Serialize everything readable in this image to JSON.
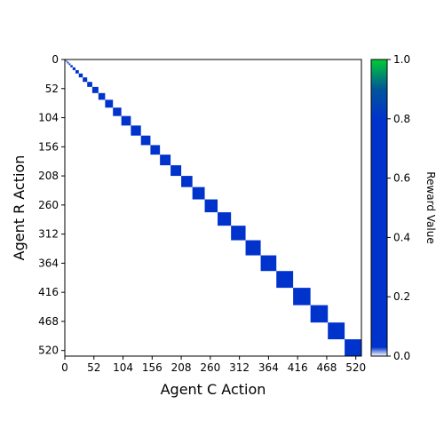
{
  "chart_data": {
    "type": "heatmap",
    "xlabel": "Agent C Action",
    "ylabel": "Agent R Action",
    "xlim": [
      0,
      530
    ],
    "ylim": [
      530,
      0
    ],
    "xticks": [
      0,
      52,
      104,
      156,
      208,
      260,
      312,
      364,
      416,
      468,
      520
    ],
    "yticks": [
      0,
      52,
      104,
      156,
      208,
      260,
      312,
      364,
      416,
      468,
      520
    ],
    "background_value": 0.0,
    "block_value": 0.2,
    "diagonal_blocks": [
      {
        "start": 0,
        "end": 2
      },
      {
        "start": 2,
        "end": 4
      },
      {
        "start": 4,
        "end": 7
      },
      {
        "start": 7,
        "end": 10
      },
      {
        "start": 10,
        "end": 14
      },
      {
        "start": 14,
        "end": 19
      },
      {
        "start": 19,
        "end": 25
      },
      {
        "start": 25,
        "end": 32
      },
      {
        "start": 32,
        "end": 40
      },
      {
        "start": 40,
        "end": 49
      },
      {
        "start": 49,
        "end": 60
      },
      {
        "start": 60,
        "end": 72
      },
      {
        "start": 72,
        "end": 86
      },
      {
        "start": 86,
        "end": 101
      },
      {
        "start": 101,
        "end": 118
      },
      {
        "start": 118,
        "end": 136
      },
      {
        "start": 136,
        "end": 153
      },
      {
        "start": 153,
        "end": 170
      },
      {
        "start": 170,
        "end": 189
      },
      {
        "start": 189,
        "end": 208
      },
      {
        "start": 208,
        "end": 228
      },
      {
        "start": 228,
        "end": 250
      },
      {
        "start": 250,
        "end": 273
      },
      {
        "start": 273,
        "end": 297
      },
      {
        "start": 297,
        "end": 323
      },
      {
        "start": 323,
        "end": 350
      },
      {
        "start": 350,
        "end": 378
      },
      {
        "start": 378,
        "end": 408
      },
      {
        "start": 408,
        "end": 439
      },
      {
        "start": 439,
        "end": 470
      },
      {
        "start": 470,
        "end": 500
      },
      {
        "start": 500,
        "end": 530
      }
    ],
    "colorbar": {
      "label": "Reward Value",
      "range": [
        0.0,
        1.0
      ],
      "ticks": [
        "0.0",
        "0.2",
        "0.4",
        "0.6",
        "0.8",
        "1.0"
      ],
      "colors": [
        "#ffffff",
        "#0033cc",
        "#00cc33"
      ]
    }
  }
}
